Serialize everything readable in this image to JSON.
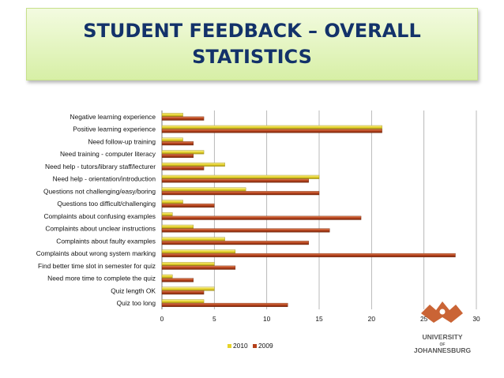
{
  "slide": {
    "title_line1": "STUDENT FEEDBACK – OVERALL",
    "title_line2": "STATISTICS"
  },
  "logo": {
    "line1": "UNIVERSITY",
    "line2": "OF",
    "line3": "JOHANNESBURG",
    "color": "#c4531f"
  },
  "chart_data": {
    "type": "bar",
    "orientation": "horizontal",
    "categories": [
      "Negative learning experience",
      "Positive learning experience",
      "Need follow-up training",
      "Need training - computer literacy",
      "Need help - tutors/library staff/lecturer",
      "Need help - orientation/introduction",
      "Questions not challenging/easy/boring",
      "Questions too difficult/challenging",
      "Complaints about confusing examples",
      "Complaints about unclear instructions",
      "Complaints about faulty examples",
      "Complaints about wrong system marking",
      "Find better time slot in semester for quiz",
      "Need more time to complete the quiz",
      "Quiz length OK",
      "Quiz too long"
    ],
    "series": [
      {
        "name": "2010",
        "color": "#e6d32a",
        "values": [
          2,
          21,
          2,
          4,
          6,
          15,
          8,
          2,
          1,
          3,
          6,
          7,
          5,
          1,
          5,
          4
        ]
      },
      {
        "name": "2009",
        "color": "#b5401a",
        "values": [
          4,
          21,
          3,
          3,
          4,
          14,
          15,
          5,
          19,
          16,
          14,
          28,
          7,
          3,
          4,
          12
        ]
      }
    ],
    "xlim": [
      0,
      30
    ],
    "xticks": [
      "0",
      "5",
      "10",
      "15",
      "20",
      "25",
      "30"
    ],
    "grid": true,
    "legend_position": "bottom"
  }
}
